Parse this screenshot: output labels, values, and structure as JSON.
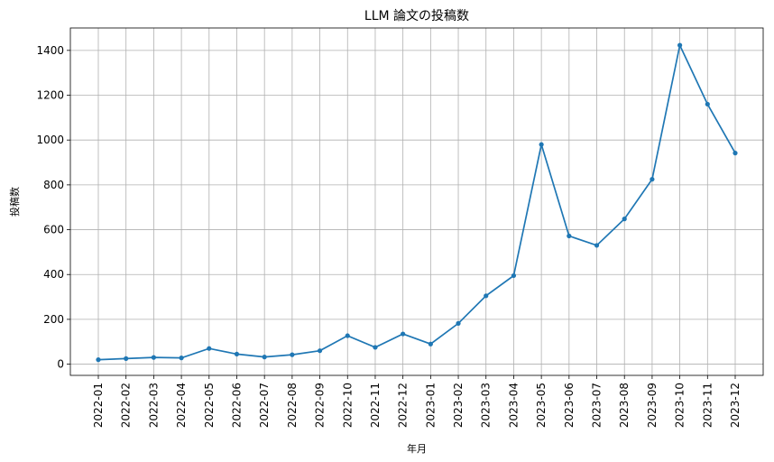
{
  "chart_data": {
    "type": "line",
    "title": "LLM 論文の投稿数",
    "xlabel": "年月",
    "ylabel": "投稿数",
    "categories": [
      "2022-01",
      "2022-02",
      "2022-03",
      "2022-04",
      "2022-05",
      "2022-06",
      "2022-07",
      "2022-08",
      "2022-09",
      "2022-10",
      "2022-11",
      "2022-12",
      "2023-01",
      "2023-02",
      "2023-03",
      "2023-04",
      "2023-05",
      "2023-06",
      "2023-07",
      "2023-08",
      "2023-09",
      "2023-10",
      "2023-11",
      "2023-12"
    ],
    "series": [
      {
        "values": [
          20,
          25,
          30,
          28,
          70,
          45,
          32,
          42,
          60,
          127,
          75,
          135,
          90,
          182,
          305,
          395,
          980,
          572,
          530,
          648,
          825,
          1423,
          1160,
          942
        ],
        "color": "#1f77b4"
      }
    ],
    "ylim": [
      -50,
      1500
    ],
    "yticks": [
      0,
      200,
      400,
      600,
      800,
      1000,
      1200,
      1400
    ],
    "grid": true,
    "markers": true
  }
}
